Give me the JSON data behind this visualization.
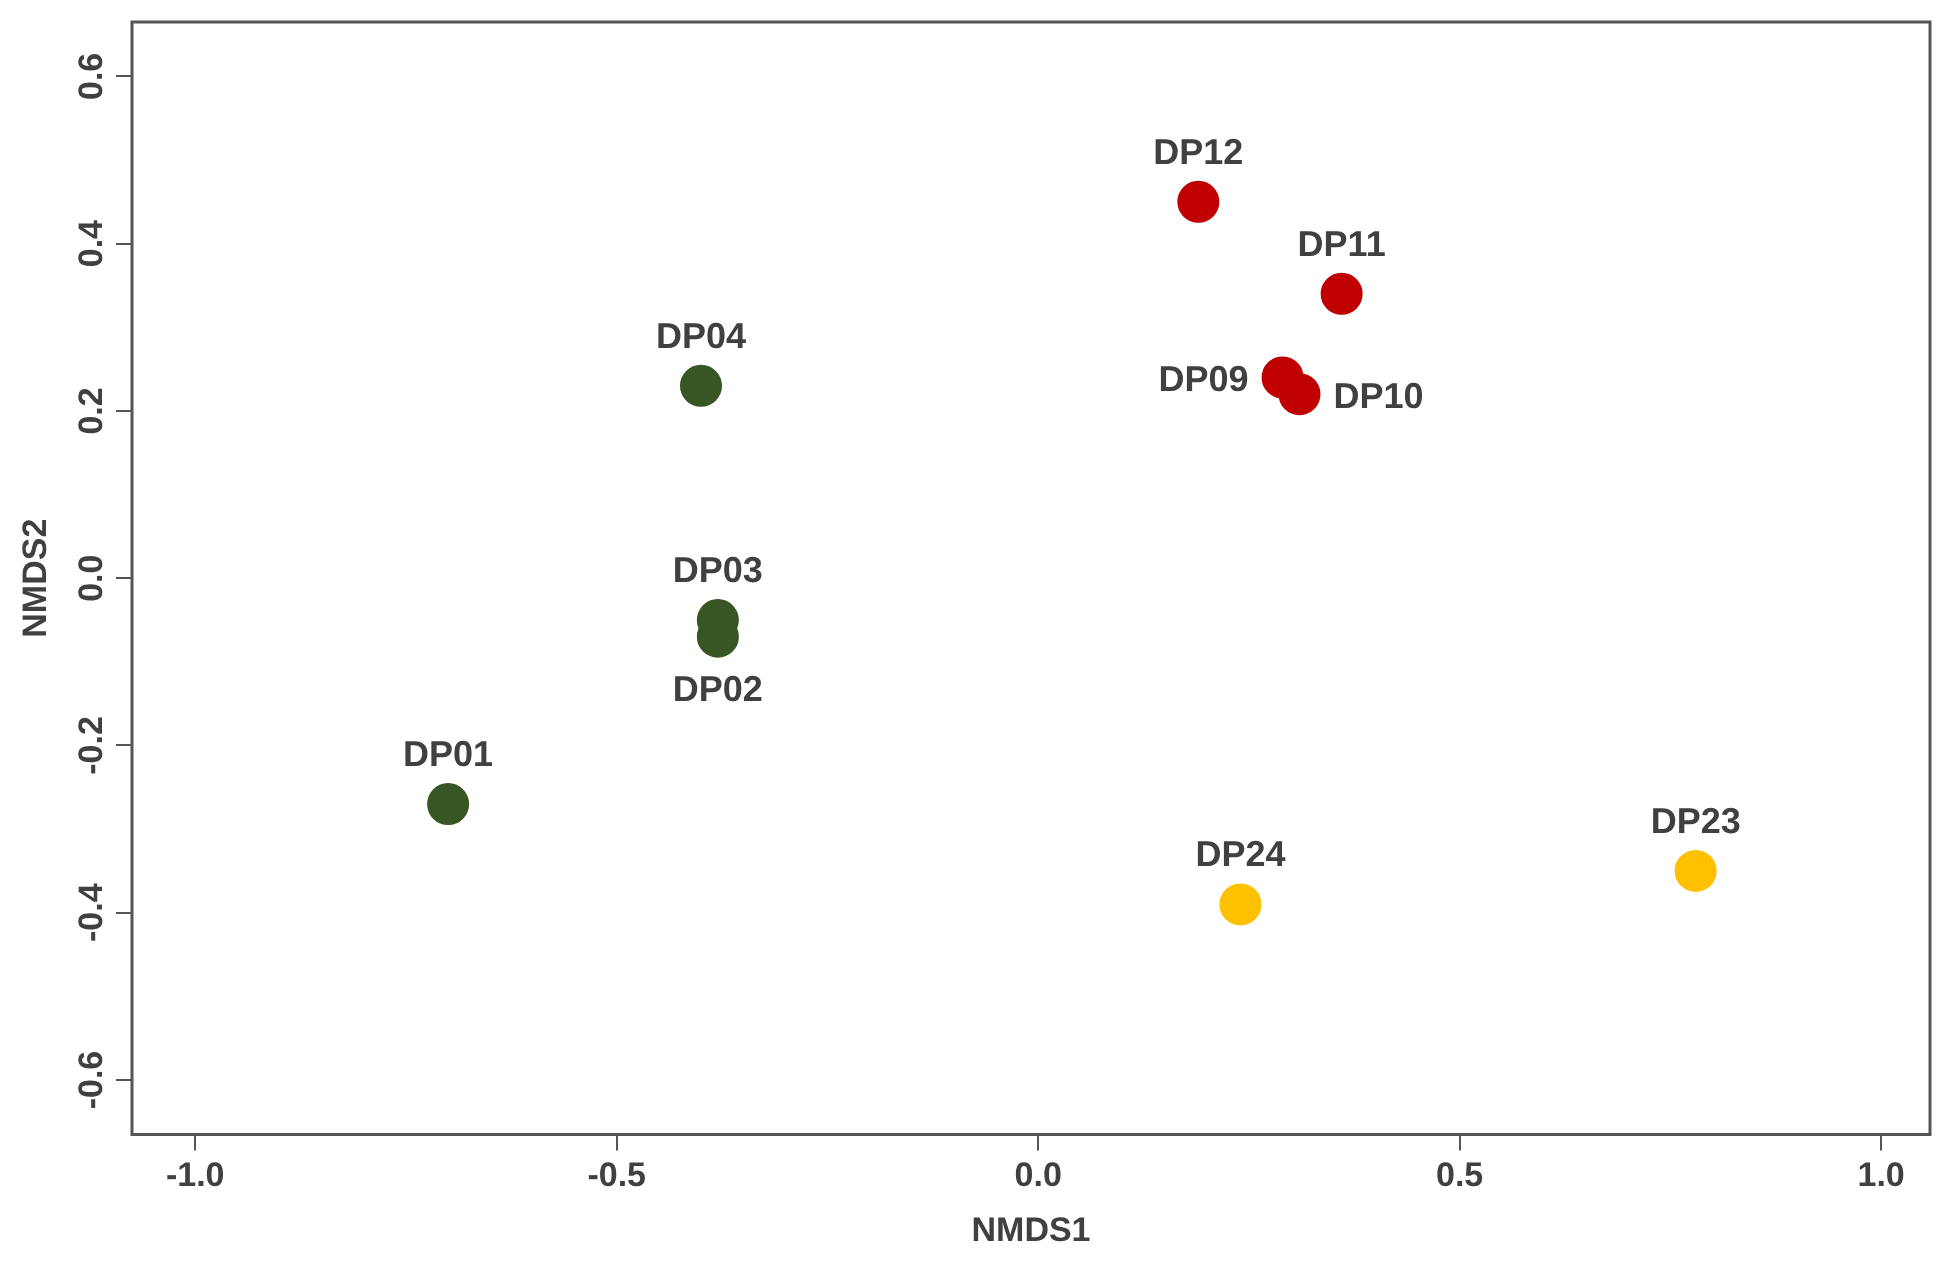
{
  "chart_data": {
    "type": "scatter",
    "xlabel": "NMDS1",
    "ylabel": "NMDS2",
    "xlim": [
      -1.075,
      1.058
    ],
    "ylim": [
      -0.665,
      0.665
    ],
    "xticks": [
      {
        "value": -1,
        "label": "-1.0"
      },
      {
        "value": -0.5,
        "label": "-0.5"
      },
      {
        "value": 0,
        "label": "0.0"
      },
      {
        "value": 0.5,
        "label": "0.5"
      },
      {
        "value": 1,
        "label": "1.0"
      }
    ],
    "yticks": [
      {
        "value": -0.6,
        "label": "-0.6"
      },
      {
        "value": -0.4,
        "label": "-0.4"
      },
      {
        "value": -0.2,
        "label": "-0.2"
      },
      {
        "value": 0,
        "label": "0.0"
      },
      {
        "value": 0.2,
        "label": "0.2"
      },
      {
        "value": 0.4,
        "label": "0.4"
      },
      {
        "value": 0.6,
        "label": "0.6"
      }
    ],
    "grid": false,
    "legend": false,
    "marker": "circle",
    "series": [
      {
        "color": "#375623",
        "x": [
          -0.7,
          -0.38,
          -0.38,
          -0.4
        ],
        "values": [
          -0.27,
          -0.05,
          -0.07,
          0.23
        ]
      },
      {
        "color": "#c00000",
        "x": [
          0.29,
          0.31,
          0.36,
          0.19
        ],
        "values": [
          0.24,
          0.22,
          0.34,
          0.45
        ]
      },
      {
        "color": "#ffc000",
        "x": [
          0.78,
          0.24
        ],
        "values": [
          -0.35,
          -0.39
        ]
      }
    ],
    "annotations": [
      {
        "text": "DP01",
        "x": -0.7,
        "y": -0.27
      },
      {
        "text": "DP02",
        "x": -0.38,
        "y": -0.07
      },
      {
        "text": "DP03",
        "x": -0.38,
        "y": -0.05
      },
      {
        "text": "DP04",
        "x": -0.4,
        "y": 0.23
      },
      {
        "text": "DP09",
        "x": 0.29,
        "y": 0.24
      },
      {
        "text": "DP10",
        "x": 0.31,
        "y": 0.22
      },
      {
        "text": "DP11",
        "x": 0.36,
        "y": 0.34
      },
      {
        "text": "DP12",
        "x": 0.19,
        "y": 0.45
      },
      {
        "text": "DP23",
        "x": 0.78,
        "y": -0.35
      },
      {
        "text": "DP24",
        "x": 0.24,
        "y": -0.39
      }
    ]
  }
}
